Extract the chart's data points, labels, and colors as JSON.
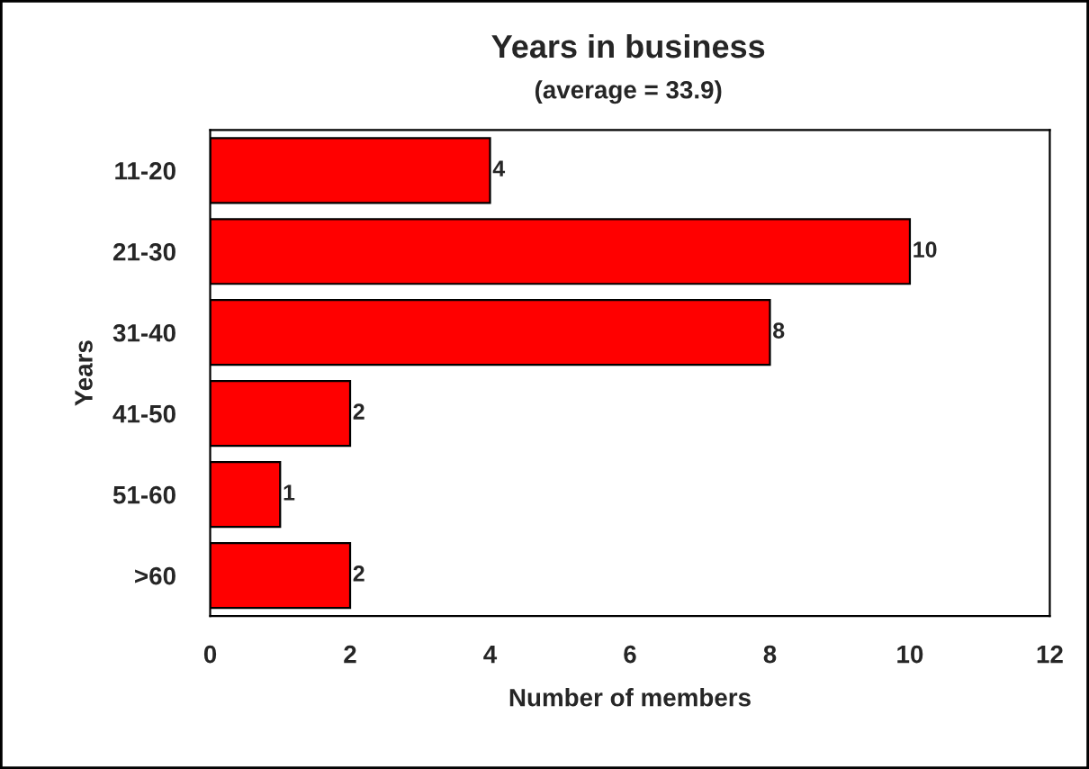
{
  "chart_data": {
    "type": "bar",
    "orientation": "horizontal",
    "title": "Years in business",
    "subtitle": "(average = 33.9)",
    "xlabel": "Number of members",
    "ylabel": "Years",
    "categories": [
      "11-20",
      "21-30",
      "31-40",
      "41-50",
      "51-60",
      ">60"
    ],
    "values": [
      4,
      10,
      8,
      2,
      1,
      2
    ],
    "color": "#ff0000",
    "xlim": [
      0,
      12
    ],
    "xticks": [
      0,
      2,
      4,
      6,
      8,
      10,
      12
    ],
    "data_labels": true,
    "grid": false,
    "legend": false
  }
}
